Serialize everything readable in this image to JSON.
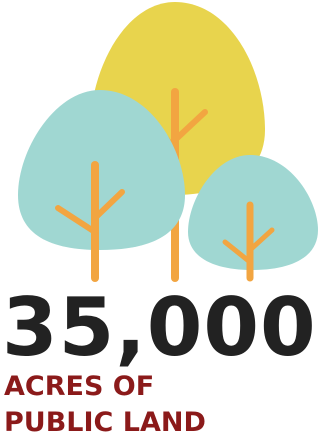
{
  "figure": "35,000",
  "caption": {
    "lines": [
      "ACRES OF",
      "PUBLIC LAND"
    ]
  }
}
